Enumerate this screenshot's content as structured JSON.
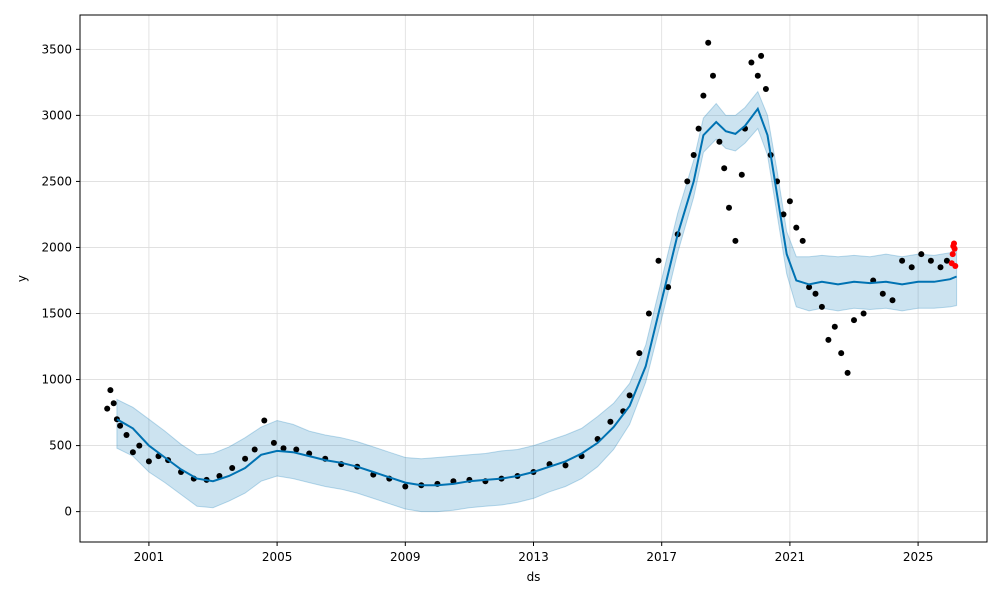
{
  "chart_data": {
    "type": "line",
    "title": "",
    "xlabel": "ds",
    "ylabel": "y",
    "xlim": [
      1998.85,
      2027.15
    ],
    "ylim": [
      -230,
      3760
    ],
    "grid": true,
    "x_ticks": [
      2001,
      2005,
      2009,
      2013,
      2017,
      2021,
      2025
    ],
    "x_tick_labels": [
      "2001",
      "2005",
      "2009",
      "2013",
      "2017",
      "2021",
      "2025"
    ],
    "y_ticks": [
      0,
      500,
      1000,
      1500,
      2000,
      2500,
      3000,
      3500
    ],
    "y_tick_labels": [
      "0",
      "500",
      "1000",
      "1500",
      "2000",
      "2500",
      "3000",
      "3500"
    ],
    "colors": {
      "observed": "#000000",
      "forecast_line": "#0072B2",
      "interval_fill": "#0072B2",
      "highlight": "#ff0000",
      "grid": "#dddddd"
    },
    "series": [
      {
        "kind": "forecast",
        "x": [
          2000.0,
          2000.5,
          2001.0,
          2001.5,
          2002.0,
          2002.5,
          2003.0,
          2003.5,
          2004.0,
          2004.5,
          2005.0,
          2005.5,
          2006.0,
          2006.5,
          2007.0,
          2007.5,
          2008.0,
          2008.5,
          2009.0,
          2009.5,
          2010.0,
          2010.5,
          2011.0,
          2011.5,
          2012.0,
          2012.5,
          2013.0,
          2013.5,
          2014.0,
          2014.5,
          2015.0,
          2015.5,
          2016.0,
          2016.5,
          2017.0,
          2017.5,
          2018.0,
          2018.3,
          2018.7,
          2019.0,
          2019.3,
          2019.6,
          2020.0,
          2020.3,
          2020.6,
          2020.9,
          2021.2,
          2021.6,
          2022.0,
          2022.5,
          2023.0,
          2023.5,
          2024.0,
          2024.5,
          2025.0,
          2025.5,
          2026.0,
          2026.2
        ],
        "y": [
          700,
          630,
          500,
          410,
          320,
          250,
          230,
          270,
          330,
          430,
          460,
          450,
          420,
          390,
          370,
          340,
          300,
          260,
          220,
          200,
          200,
          210,
          230,
          240,
          250,
          270,
          300,
          340,
          380,
          440,
          520,
          640,
          800,
          1100,
          1600,
          2100,
          2500,
          2850,
          2950,
          2880,
          2860,
          2920,
          3050,
          2850,
          2400,
          1950,
          1750,
          1720,
          1740,
          1720,
          1740,
          1730,
          1740,
          1720,
          1740,
          1740,
          1760,
          1780
        ],
        "lower": [
          480,
          420,
          300,
          220,
          130,
          40,
          30,
          80,
          140,
          230,
          270,
          250,
          220,
          190,
          170,
          140,
          100,
          60,
          20,
          0,
          0,
          10,
          30,
          40,
          50,
          70,
          100,
          150,
          190,
          250,
          340,
          470,
          660,
          980,
          1460,
          1960,
          2380,
          2720,
          2820,
          2750,
          2730,
          2790,
          2900,
          2700,
          2250,
          1800,
          1550,
          1520,
          1540,
          1520,
          1540,
          1530,
          1540,
          1520,
          1540,
          1540,
          1550,
          1560
        ],
        "upper": [
          850,
          790,
          700,
          610,
          510,
          430,
          440,
          490,
          560,
          640,
          690,
          660,
          610,
          580,
          560,
          530,
          490,
          450,
          410,
          400,
          410,
          420,
          430,
          440,
          460,
          470,
          500,
          540,
          580,
          630,
          720,
          820,
          970,
          1260,
          1760,
          2260,
          2660,
          2980,
          3090,
          3000,
          3000,
          3060,
          3180,
          3000,
          2580,
          2120,
          1930,
          1930,
          1940,
          1930,
          1940,
          1930,
          1950,
          1930,
          1950,
          1940,
          1960,
          2000
        ]
      },
      {
        "kind": "observed",
        "x": [
          1999.7,
          1999.8,
          1999.9,
          2000.0,
          2000.1,
          2000.3,
          2000.5,
          2000.7,
          2001.0,
          2001.3,
          2001.6,
          2002.0,
          2002.4,
          2002.8,
          2003.2,
          2003.6,
          2004.0,
          2004.3,
          2004.6,
          2004.9,
          2005.2,
          2005.6,
          2006.0,
          2006.5,
          2007.0,
          2007.5,
          2008.0,
          2008.5,
          2009.0,
          2009.5,
          2010.0,
          2010.5,
          2011.0,
          2011.5,
          2012.0,
          2012.5,
          2013.0,
          2013.5,
          2014.0,
          2014.5,
          2015.0,
          2015.4,
          2015.8,
          2016.0,
          2016.3,
          2016.6,
          2016.9,
          2017.2,
          2017.5,
          2017.8,
          2018.0,
          2018.15,
          2018.3,
          2018.45,
          2018.6,
          2018.8,
          2018.95,
          2019.1,
          2019.3,
          2019.5,
          2019.6,
          2019.8,
          2020.0,
          2020.1,
          2020.25,
          2020.4,
          2020.6,
          2020.8,
          2021.0,
          2021.2,
          2021.4,
          2021.6,
          2021.8,
          2022.0,
          2022.2,
          2022.4,
          2022.6,
          2022.8,
          2023.0,
          2023.3,
          2023.6,
          2023.9,
          2024.2,
          2024.5,
          2024.8,
          2025.1,
          2025.4,
          2025.7,
          2025.9
        ],
        "y": [
          780,
          920,
          820,
          700,
          650,
          580,
          450,
          500,
          380,
          420,
          390,
          300,
          250,
          240,
          270,
          330,
          400,
          470,
          690,
          520,
          480,
          470,
          440,
          400,
          360,
          340,
          280,
          250,
          190,
          200,
          210,
          230,
          240,
          230,
          250,
          270,
          300,
          360,
          350,
          420,
          550,
          680,
          760,
          880,
          1200,
          1500,
          1900,
          1700,
          2100,
          2500,
          2700,
          2900,
          3150,
          3550,
          3300,
          2800,
          2600,
          2300,
          2050,
          2550,
          2900,
          3400,
          3300,
          3450,
          3200,
          2700,
          2500,
          2250,
          2350,
          2150,
          2050,
          1700,
          1650,
          1550,
          1300,
          1400,
          1200,
          1050,
          1450,
          1500,
          1750,
          1650,
          1600,
          1900,
          1850,
          1950,
          1900,
          1850,
          1900
        ]
      },
      {
        "kind": "highlight",
        "x": [
          2026.05,
          2026.08,
          2026.1,
          2026.12,
          2026.14,
          2026.16
        ],
        "y": [
          1880,
          1950,
          2010,
          2030,
          1990,
          1860
        ]
      }
    ]
  }
}
